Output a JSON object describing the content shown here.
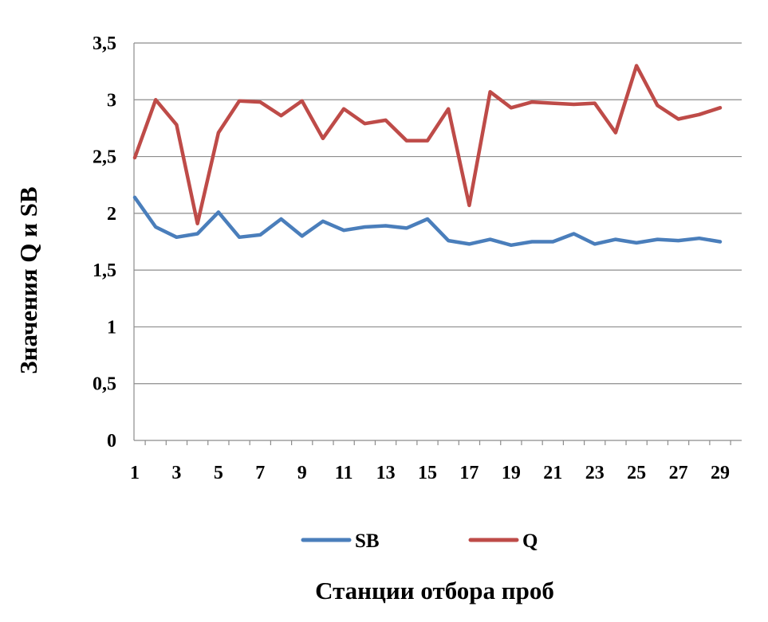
{
  "chart_data": {
    "type": "line",
    "title": "",
    "xlabel": "Станции отбора проб",
    "ylabel": "Значения Q и SB",
    "x": [
      1,
      2,
      3,
      4,
      5,
      6,
      7,
      8,
      9,
      10,
      11,
      12,
      13,
      14,
      15,
      16,
      17,
      18,
      19,
      20,
      21,
      22,
      23,
      24,
      25,
      26,
      27,
      28,
      29
    ],
    "x_tick_labels": [
      "1",
      "3",
      "5",
      "7",
      "9",
      "11",
      "13",
      "15",
      "17",
      "19",
      "21",
      "23",
      "25",
      "27",
      "29"
    ],
    "y_tick_labels": [
      "0",
      "0,5",
      "1",
      "1,5",
      "2",
      "2,5",
      "3",
      "3,5"
    ],
    "ylim": [
      0,
      3.5
    ],
    "grid": "horizontal",
    "legend_position": "bottom",
    "series": [
      {
        "name": "SB",
        "color": "#4a7ebb",
        "values": [
          2.14,
          1.88,
          1.79,
          1.82,
          2.01,
          1.79,
          1.81,
          1.95,
          1.8,
          1.93,
          1.85,
          1.88,
          1.89,
          1.87,
          1.95,
          1.76,
          1.73,
          1.77,
          1.72,
          1.75,
          1.75,
          1.82,
          1.73,
          1.77,
          1.74,
          1.77,
          1.76,
          1.78,
          1.75
        ]
      },
      {
        "name": "Q",
        "color": "#be4b48",
        "values": [
          2.49,
          3.0,
          2.78,
          1.91,
          2.71,
          2.99,
          2.98,
          2.86,
          2.99,
          2.66,
          2.92,
          2.79,
          2.82,
          2.64,
          2.64,
          2.92,
          2.07,
          3.07,
          2.93,
          2.98,
          2.97,
          2.96,
          2.97,
          2.71,
          3.3,
          2.95,
          2.83,
          2.87,
          2.93
        ]
      }
    ]
  }
}
